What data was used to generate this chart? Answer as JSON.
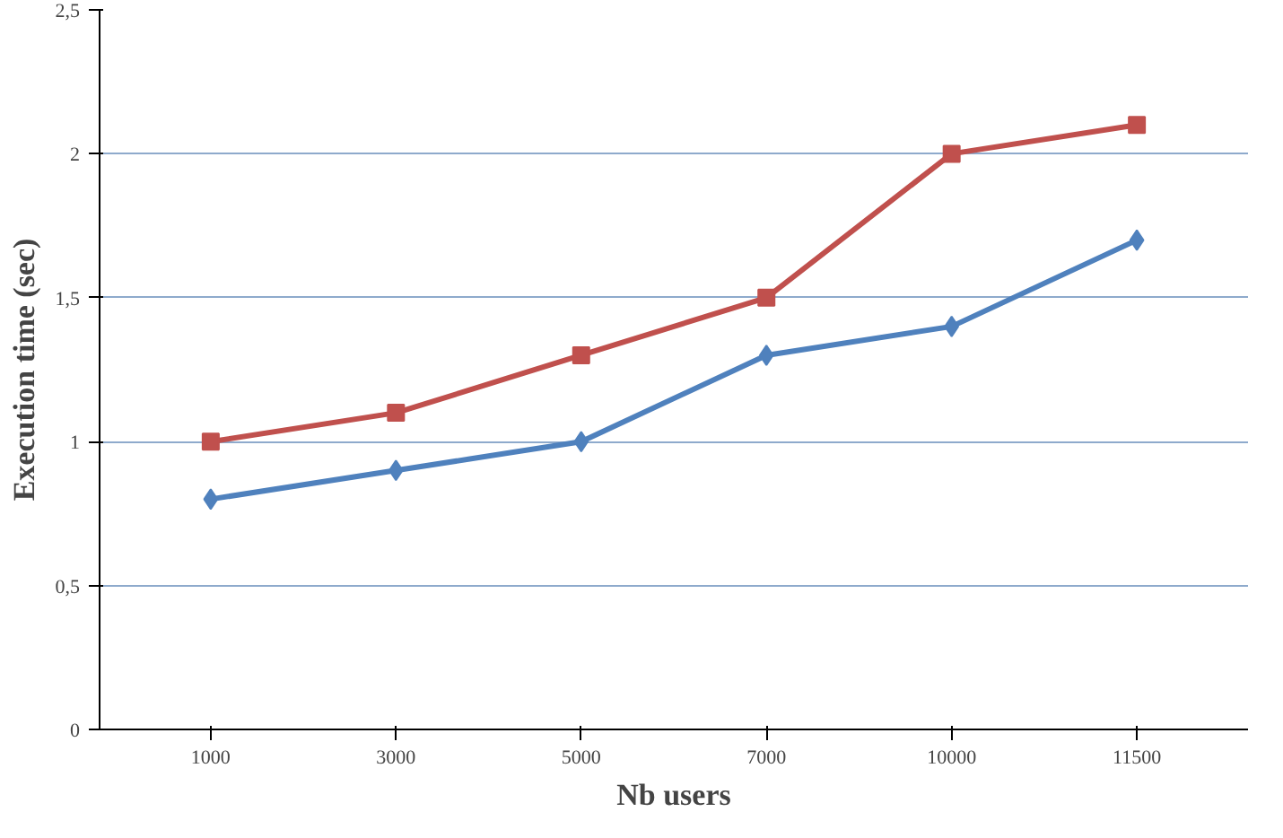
{
  "chart_data": {
    "type": "line",
    "xlabel": "Nb users",
    "ylabel": "Execution time (sec)",
    "categories": [
      "1000",
      "3000",
      "5000",
      "7000",
      "10000",
      "11500"
    ],
    "series": [
      {
        "color": "#c0504d",
        "marker": "square",
        "values": [
          1,
          1.1,
          1.3,
          1.5,
          2,
          2.1
        ]
      },
      {
        "color": "#4f81bd",
        "marker": "diamond",
        "values": [
          0.8,
          0.9,
          1.0,
          1.3,
          1.4,
          1.7
        ]
      }
    ],
    "ylim": [
      0,
      2.5
    ],
    "yticks": [
      0,
      {
        "value": 0.5,
        "label": "0,5"
      },
      1,
      {
        "value": 1.5,
        "label": "1,5"
      },
      2,
      {
        "value": 2.5,
        "label": "2,5"
      }
    ],
    "grid": "y",
    "line_style": "solid"
  }
}
